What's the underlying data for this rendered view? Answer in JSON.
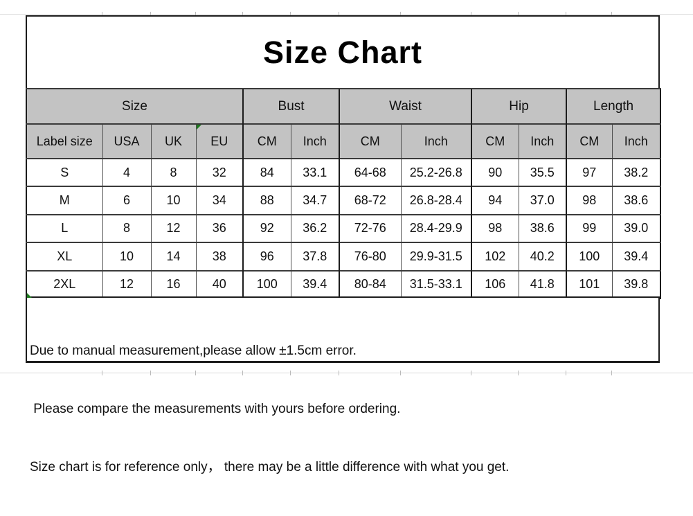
{
  "title": "Size Chart",
  "table": {
    "groups": [
      {
        "label": "Size"
      },
      {
        "label": "Bust"
      },
      {
        "label": "Waist"
      },
      {
        "label": "Hip"
      },
      {
        "label": "Length"
      }
    ],
    "subheaders": [
      "Label size",
      "USA",
      "UK",
      "EU",
      "CM",
      "Inch",
      "CM",
      "Inch",
      "CM",
      "Inch",
      "CM",
      "Inch"
    ],
    "rows": [
      [
        "S",
        "4",
        "8",
        "32",
        "84",
        "33.1",
        "64-68",
        "25.2-26.8",
        "90",
        "35.5",
        "97",
        "38.2"
      ],
      [
        "M",
        "6",
        "10",
        "34",
        "88",
        "34.7",
        "68-72",
        "26.8-28.4",
        "94",
        "37.0",
        "98",
        "38.6"
      ],
      [
        "L",
        "8",
        "12",
        "36",
        "92",
        "36.2",
        "72-76",
        "28.4-29.9",
        "98",
        "38.6",
        "99",
        "39.0"
      ],
      [
        "XL",
        "10",
        "14",
        "38",
        "96",
        "37.8",
        "76-80",
        "29.9-31.5",
        "102",
        "40.2",
        "100",
        "39.4"
      ],
      [
        "2XL",
        "12",
        "16",
        "40",
        "100",
        "39.4",
        "80-84",
        "31.5-33.1",
        "106",
        "41.8",
        "101",
        "39.8"
      ]
    ]
  },
  "notes": [
    "Due to manual measurement,please allow ±1.5cm error.",
    " Please compare the measurements with yours before ordering.",
    "Size chart is for reference only， there may be a little difference with what you get."
  ],
  "colors": {
    "header_bg": "#c3c3c3",
    "border": "#1c1c1c",
    "flag_green": "#1e7a1e"
  }
}
